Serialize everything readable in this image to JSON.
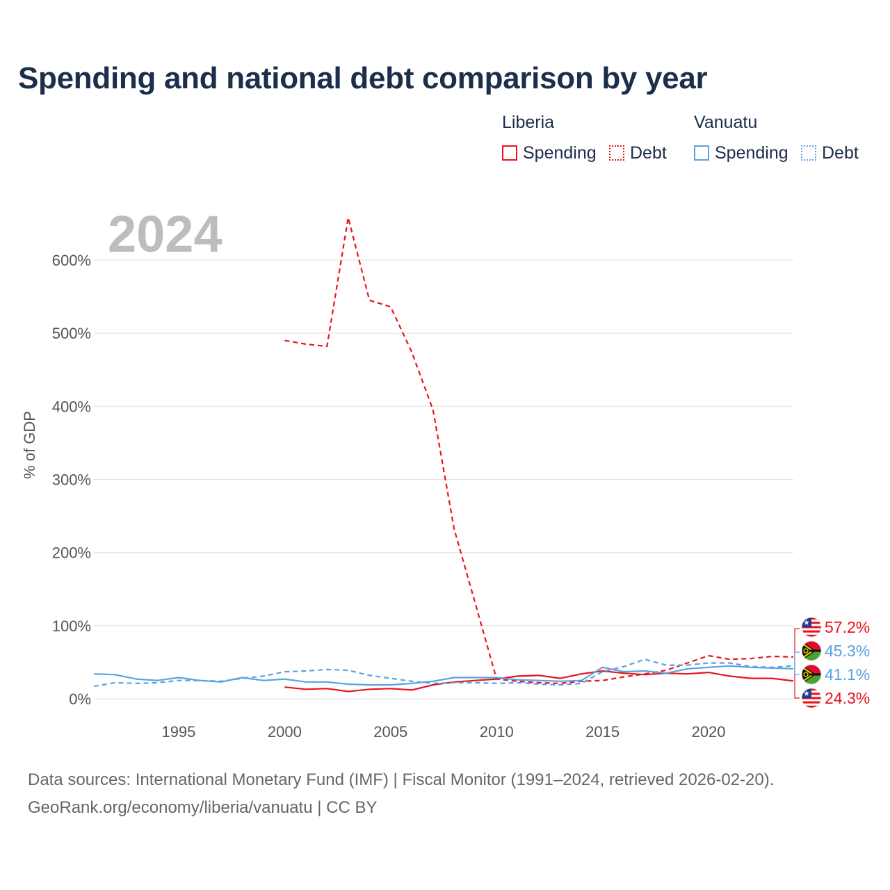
{
  "title": "Spending and national debt comparison by year",
  "legend": {
    "groups": [
      {
        "country": "Liberia",
        "color": "#e8141b",
        "items": [
          {
            "label": "Spending",
            "style": "solid"
          },
          {
            "label": "Debt",
            "style": "dotted"
          }
        ]
      },
      {
        "country": "Vanuatu",
        "color": "#5aa1e3",
        "items": [
          {
            "label": "Spending",
            "style": "solid"
          },
          {
            "label": "Debt",
            "style": "dotted"
          }
        ]
      }
    ]
  },
  "year_label": "2024",
  "source": {
    "line1": "Data sources: International Monetary Fund (IMF) | Fiscal Monitor (1991–2024, retrieved 2026-02-20).",
    "line2": "GeoRank.org/economy/liberia/vanuatu | CC BY"
  },
  "chart_data": {
    "type": "line",
    "title": "Spending and national debt comparison by year",
    "xlabel": "",
    "ylabel": "% of GDP",
    "xlim": [
      1991,
      2024
    ],
    "ylim": [
      0,
      650
    ],
    "x_ticks": [
      1995,
      2000,
      2005,
      2010,
      2015,
      2020
    ],
    "y_ticks": [
      0,
      100,
      200,
      300,
      400,
      500,
      600
    ],
    "y_tick_labels": [
      "0%",
      "100%",
      "200%",
      "300%",
      "400%",
      "500%",
      "600%"
    ],
    "grid": true,
    "series": [
      {
        "name": "Liberia Spending",
        "country": "Liberia",
        "measure": "Spending",
        "color": "#e8141b",
        "dash": "solid",
        "x": [
          2000,
          2001,
          2002,
          2003,
          2004,
          2005,
          2006,
          2007,
          2008,
          2009,
          2010,
          2011,
          2012,
          2013,
          2014,
          2015,
          2016,
          2017,
          2018,
          2019,
          2020,
          2021,
          2022,
          2023,
          2024
        ],
        "values": [
          16,
          13,
          14,
          10,
          13,
          14,
          12,
          19,
          23,
          25,
          27,
          31,
          32,
          28,
          34,
          38,
          35,
          33,
          35,
          34,
          36,
          31,
          28,
          28,
          24.3
        ]
      },
      {
        "name": "Liberia Debt",
        "country": "Liberia",
        "measure": "Debt",
        "color": "#e8141b",
        "dash": "dashed",
        "x": [
          2000,
          2001,
          2002,
          2003,
          2004,
          2005,
          2006,
          2007,
          2008,
          2009,
          2010,
          2011,
          2012,
          2013,
          2014,
          2015,
          2016,
          2017,
          2018,
          2019,
          2020,
          2021,
          2022,
          2023,
          2024
        ],
        "values": [
          490,
          485,
          482,
          658,
          545,
          536,
          474,
          395,
          232,
          130,
          27,
          24,
          22,
          21,
          24,
          25,
          30,
          34,
          39,
          49,
          59,
          54,
          55,
          58,
          57.2
        ]
      },
      {
        "name": "Vanuatu Spending",
        "country": "Vanuatu",
        "measure": "Spending",
        "color": "#5aa1e3",
        "dash": "solid",
        "x": [
          1991,
          1992,
          1993,
          1994,
          1995,
          1996,
          1997,
          1998,
          1999,
          2000,
          2001,
          2002,
          2003,
          2004,
          2005,
          2006,
          2007,
          2008,
          2009,
          2010,
          2011,
          2012,
          2013,
          2014,
          2015,
          2016,
          2017,
          2018,
          2019,
          2020,
          2021,
          2022,
          2023,
          2024
        ],
        "values": [
          34,
          33,
          27,
          25,
          29,
          25,
          23,
          29,
          25,
          27,
          23,
          23,
          20,
          19,
          19,
          21,
          24,
          29,
          29,
          29,
          26,
          25,
          24,
          25,
          43,
          37,
          38,
          35,
          41,
          43,
          45,
          43,
          42,
          41.1
        ]
      },
      {
        "name": "Vanuatu Debt",
        "country": "Vanuatu",
        "measure": "Debt",
        "color": "#5aa1e3",
        "dash": "dashed",
        "x": [
          1991,
          1992,
          1993,
          1994,
          1995,
          1996,
          1997,
          1998,
          1999,
          2000,
          2001,
          2002,
          2003,
          2004,
          2005,
          2006,
          2007,
          2008,
          2009,
          2010,
          2011,
          2012,
          2013,
          2014,
          2015,
          2016,
          2017,
          2018,
          2019,
          2020,
          2021,
          2022,
          2023,
          2024
        ],
        "values": [
          17,
          22,
          21,
          22,
          25,
          25,
          24,
          28,
          31,
          37,
          38,
          40,
          39,
          32,
          28,
          24,
          21,
          22,
          22,
          21,
          22,
          20,
          19,
          21,
          37,
          44,
          54,
          46,
          46,
          49,
          49,
          44,
          43,
          45.3
        ]
      }
    ],
    "end_labels": [
      {
        "country": "Liberia",
        "text": "57.2%",
        "value": 57.2,
        "color": "#e8141b"
      },
      {
        "country": "Vanuatu",
        "text": "45.3%",
        "value": 45.3,
        "color": "#5aa1e3"
      },
      {
        "country": "Vanuatu",
        "text": "41.1%",
        "value": 41.1,
        "color": "#5aa1e3"
      },
      {
        "country": "Liberia",
        "text": "24.3%",
        "value": 24.3,
        "color": "#e8141b"
      }
    ]
  }
}
